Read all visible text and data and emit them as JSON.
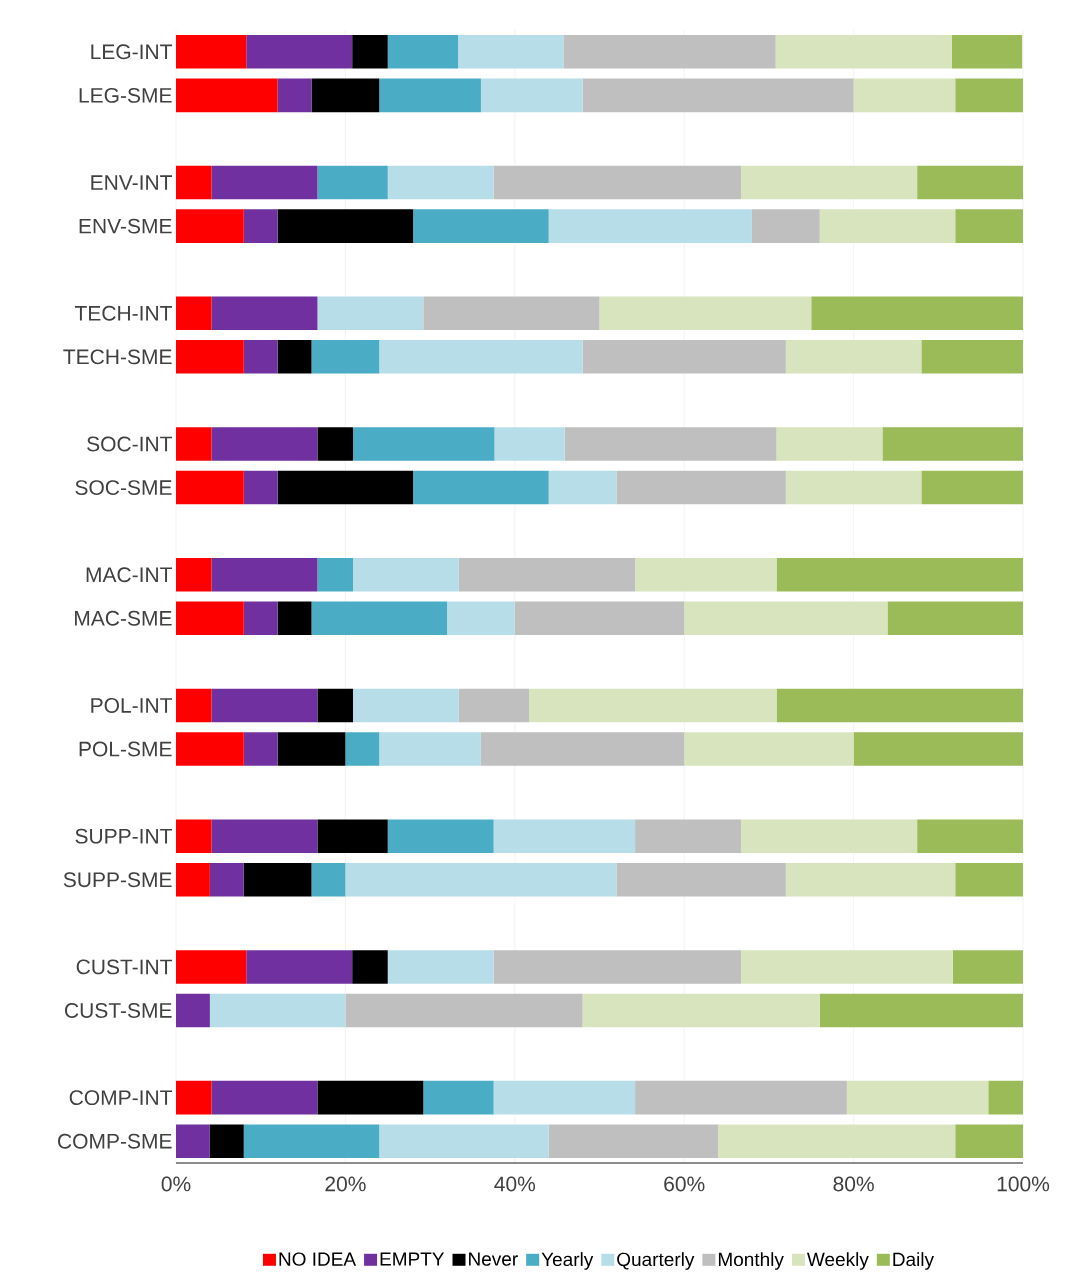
{
  "chart_data": {
    "type": "bar",
    "orientation": "horizontal",
    "stacked": true,
    "categories": [
      "LEG-INT",
      "LEG-SME",
      null,
      "ENV-INT",
      "ENV-SME",
      null,
      "TECH-INT",
      "TECH-SME",
      null,
      "SOC-INT",
      "SOC-SME",
      null,
      "MAC-INT",
      "MAC-SME",
      null,
      "POL-INT",
      "POL-SME",
      null,
      "SUPP-INT",
      "SUPP-SME",
      null,
      "CUST-INT",
      "CUST-SME",
      null,
      "COMP-INT",
      "COMP-SME"
    ],
    "series": [
      {
        "name": "NO IDEA",
        "color": "#ff0000",
        "values": [
          8.3,
          12,
          null,
          4.2,
          8,
          null,
          4.2,
          8,
          null,
          4.2,
          8,
          null,
          4.2,
          8,
          null,
          4.2,
          8,
          null,
          4.2,
          4,
          null,
          8.3,
          0,
          null,
          4.2,
          0
        ]
      },
      {
        "name": "EMPTY",
        "color": "#7030a0",
        "values": [
          12.5,
          4,
          null,
          12.5,
          4,
          null,
          12.5,
          4,
          null,
          12.5,
          4,
          null,
          12.5,
          4,
          null,
          12.5,
          4,
          null,
          12.5,
          4,
          null,
          12.5,
          4,
          null,
          12.5,
          4
        ]
      },
      {
        "name": "Never",
        "color": "#000000",
        "values": [
          4.2,
          8,
          null,
          0,
          16,
          null,
          0,
          4,
          null,
          4.2,
          16,
          null,
          0,
          4,
          null,
          4.2,
          8,
          null,
          8.3,
          8,
          null,
          4.2,
          0,
          null,
          12.5,
          4
        ]
      },
      {
        "name": "Yearly",
        "color": "#4bacc6",
        "values": [
          8.3,
          12,
          null,
          8.3,
          16,
          null,
          0,
          8,
          null,
          16.7,
          16,
          null,
          4.2,
          16,
          null,
          0,
          4,
          null,
          12.5,
          4,
          null,
          0,
          0,
          null,
          8.3,
          16
        ]
      },
      {
        "name": "Quarterly",
        "color": "#b7dee8",
        "values": [
          12.5,
          12,
          null,
          12.5,
          24,
          null,
          12.5,
          24,
          null,
          8.3,
          8,
          null,
          12.5,
          8,
          null,
          12.5,
          12,
          null,
          16.7,
          32,
          null,
          12.5,
          16,
          null,
          16.7,
          20
        ]
      },
      {
        "name": "Monthly",
        "color": "#bfbfbf",
        "values": [
          25,
          32,
          null,
          29.2,
          8,
          null,
          20.8,
          24,
          null,
          25,
          20,
          null,
          20.8,
          20,
          null,
          8.3,
          24,
          null,
          12.5,
          20,
          null,
          29.2,
          28,
          null,
          25,
          20
        ]
      },
      {
        "name": "Weekly",
        "color": "#d7e4bd",
        "values": [
          20.8,
          12,
          null,
          20.8,
          16,
          null,
          25,
          16,
          null,
          12.5,
          16,
          null,
          16.7,
          24,
          null,
          29.2,
          20,
          null,
          20.8,
          20,
          null,
          25,
          28,
          null,
          16.7,
          28
        ]
      },
      {
        "name": "Daily",
        "color": "#9bbb59",
        "values": [
          8.3,
          8,
          null,
          12.5,
          8,
          null,
          25,
          12,
          null,
          16.7,
          12,
          null,
          29.2,
          16,
          null,
          29.2,
          20,
          null,
          12.5,
          8,
          null,
          8.3,
          24,
          null,
          4.2,
          8
        ]
      }
    ],
    "xlim": [
      0,
      100
    ],
    "xticks": [
      {
        "value": 0,
        "label": "0%"
      },
      {
        "value": 20,
        "label": "20%"
      },
      {
        "value": 40,
        "label": "40%"
      },
      {
        "value": 60,
        "label": "60%"
      },
      {
        "value": 80,
        "label": "80%"
      },
      {
        "value": 100,
        "label": "100%"
      }
    ],
    "grid": "x",
    "legend": "bottom"
  }
}
